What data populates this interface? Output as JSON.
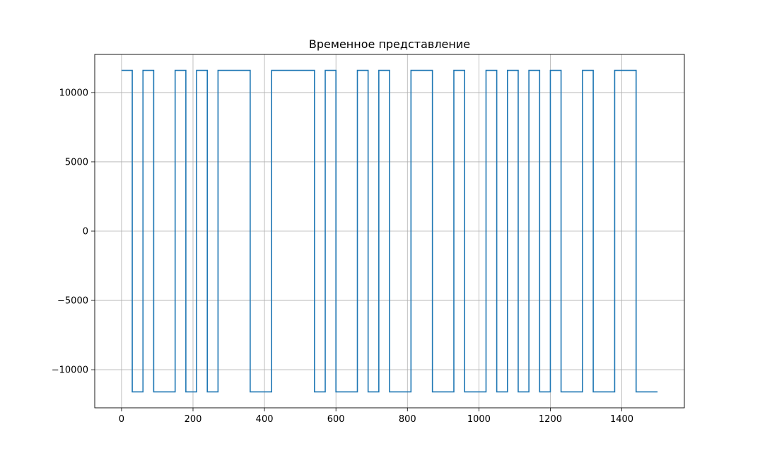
{
  "chart_data": {
    "type": "line",
    "title": "Временное представление",
    "xlabel": "",
    "ylabel": "",
    "xlim": [
      -75,
      1575
    ],
    "ylim": [
      -12750,
      12750
    ],
    "x_ticks": [
      0,
      200,
      400,
      600,
      800,
      1000,
      1200,
      1400
    ],
    "x_tick_labels": [
      "0",
      "200",
      "400",
      "600",
      "800",
      "1000",
      "1200",
      "1400"
    ],
    "y_ticks": [
      -10000,
      -5000,
      0,
      5000,
      10000
    ],
    "y_tick_labels": [
      "−10000",
      "−5000",
      "0",
      "5000",
      "10000"
    ],
    "grid": true,
    "series": [
      {
        "color": "#1f77b4",
        "drawstyle": "steps-post",
        "x": [
          0,
          30,
          60,
          90,
          150,
          180,
          210,
          240,
          270,
          360,
          420,
          540,
          570,
          600,
          660,
          690,
          720,
          750,
          810,
          870,
          930,
          960,
          1020,
          1050,
          1080,
          1110,
          1140,
          1170,
          1200,
          1230,
          1290,
          1320,
          1380,
          1440,
          1500
        ],
        "y": [
          11600,
          -11600,
          11600,
          -11600,
          11600,
          -11600,
          11600,
          -11600,
          11600,
          -11600,
          11600,
          -11600,
          11600,
          -11600,
          11600,
          -11600,
          11600,
          -11600,
          11600,
          -11600,
          11600,
          -11600,
          11600,
          -11600,
          11600,
          -11600,
          11600,
          -11600,
          11600,
          -11600,
          11600,
          -11600,
          11600,
          -11600,
          -11600
        ]
      }
    ]
  }
}
